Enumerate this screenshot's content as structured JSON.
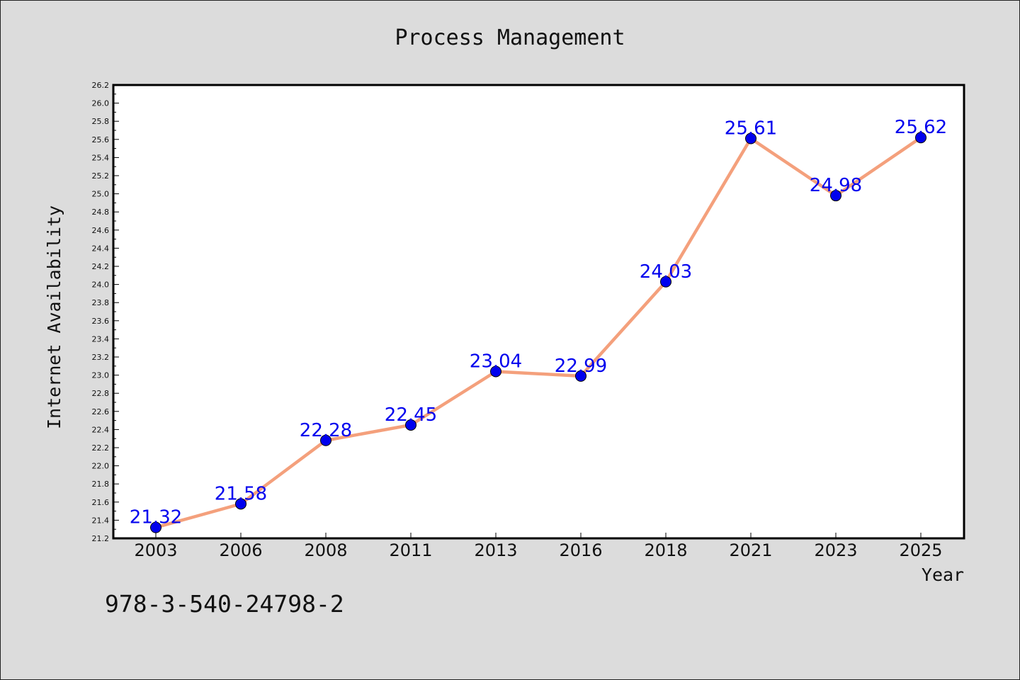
{
  "chart_data": {
    "type": "line",
    "title": "Process Management",
    "xlabel": "Year",
    "ylabel": "Internet Availability",
    "categories": [
      "2003",
      "2006",
      "2008",
      "2011",
      "2013",
      "2016",
      "2018",
      "2021",
      "2023",
      "2025"
    ],
    "series": [
      {
        "values": [
          21.32,
          21.58,
          22.28,
          22.45,
          23.04,
          22.99,
          24.03,
          25.61,
          24.98,
          25.62
        ],
        "line_color": "#f4a07c",
        "marker_color": "#0000ee",
        "label_color": "#0000ee"
      }
    ],
    "ylim": [
      21.2,
      26.2
    ],
    "ytick_step": 0.2,
    "grid": false,
    "data_labels": true
  },
  "footnote": "978-3-540-24798-2"
}
